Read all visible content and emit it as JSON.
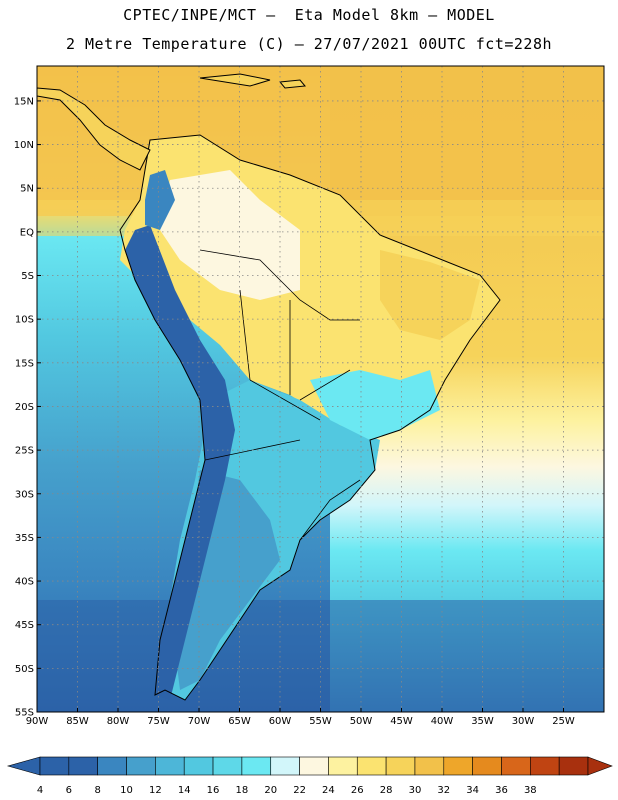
{
  "header": {
    "line1": "CPTEC/INPE/MCT –  Eta Model 8km – MODEL",
    "line2": "2 Metre Temperature (C) – 27/07/2021 00UTC fct=228h"
  },
  "map": {
    "lat_labels": [
      "15N",
      "10N",
      "5N",
      "EQ",
      "5S",
      "10S",
      "15S",
      "20S",
      "25S",
      "30S",
      "35S",
      "40S",
      "45S",
      "50S",
      "55S"
    ],
    "lon_labels": [
      "90W",
      "85W",
      "80W",
      "75W",
      "70W",
      "65W",
      "60W",
      "55W",
      "50W",
      "45W",
      "40W",
      "35W",
      "30W",
      "25W"
    ],
    "lat_range": [
      -55,
      19
    ],
    "lon_range": [
      -90,
      -20
    ]
  },
  "colorbar": {
    "ticks": [
      "4",
      "6",
      "8",
      "10",
      "12",
      "14",
      "16",
      "18",
      "20",
      "22",
      "24",
      "26",
      "28",
      "30",
      "32",
      "34",
      "36",
      "38"
    ],
    "colors": [
      "#2c62a8",
      "#3a86c0",
      "#46a0cc",
      "#4db6d8",
      "#52c8e0",
      "#5ed8e8",
      "#6be8f2",
      "#d2f6fa",
      "#fdf7e0",
      "#fdf2a0",
      "#fbe370",
      "#f6d35a",
      "#f2c14a",
      "#eea62a",
      "#e58a1e",
      "#d8661a",
      "#c04412",
      "#a8300e"
    ]
  }
}
